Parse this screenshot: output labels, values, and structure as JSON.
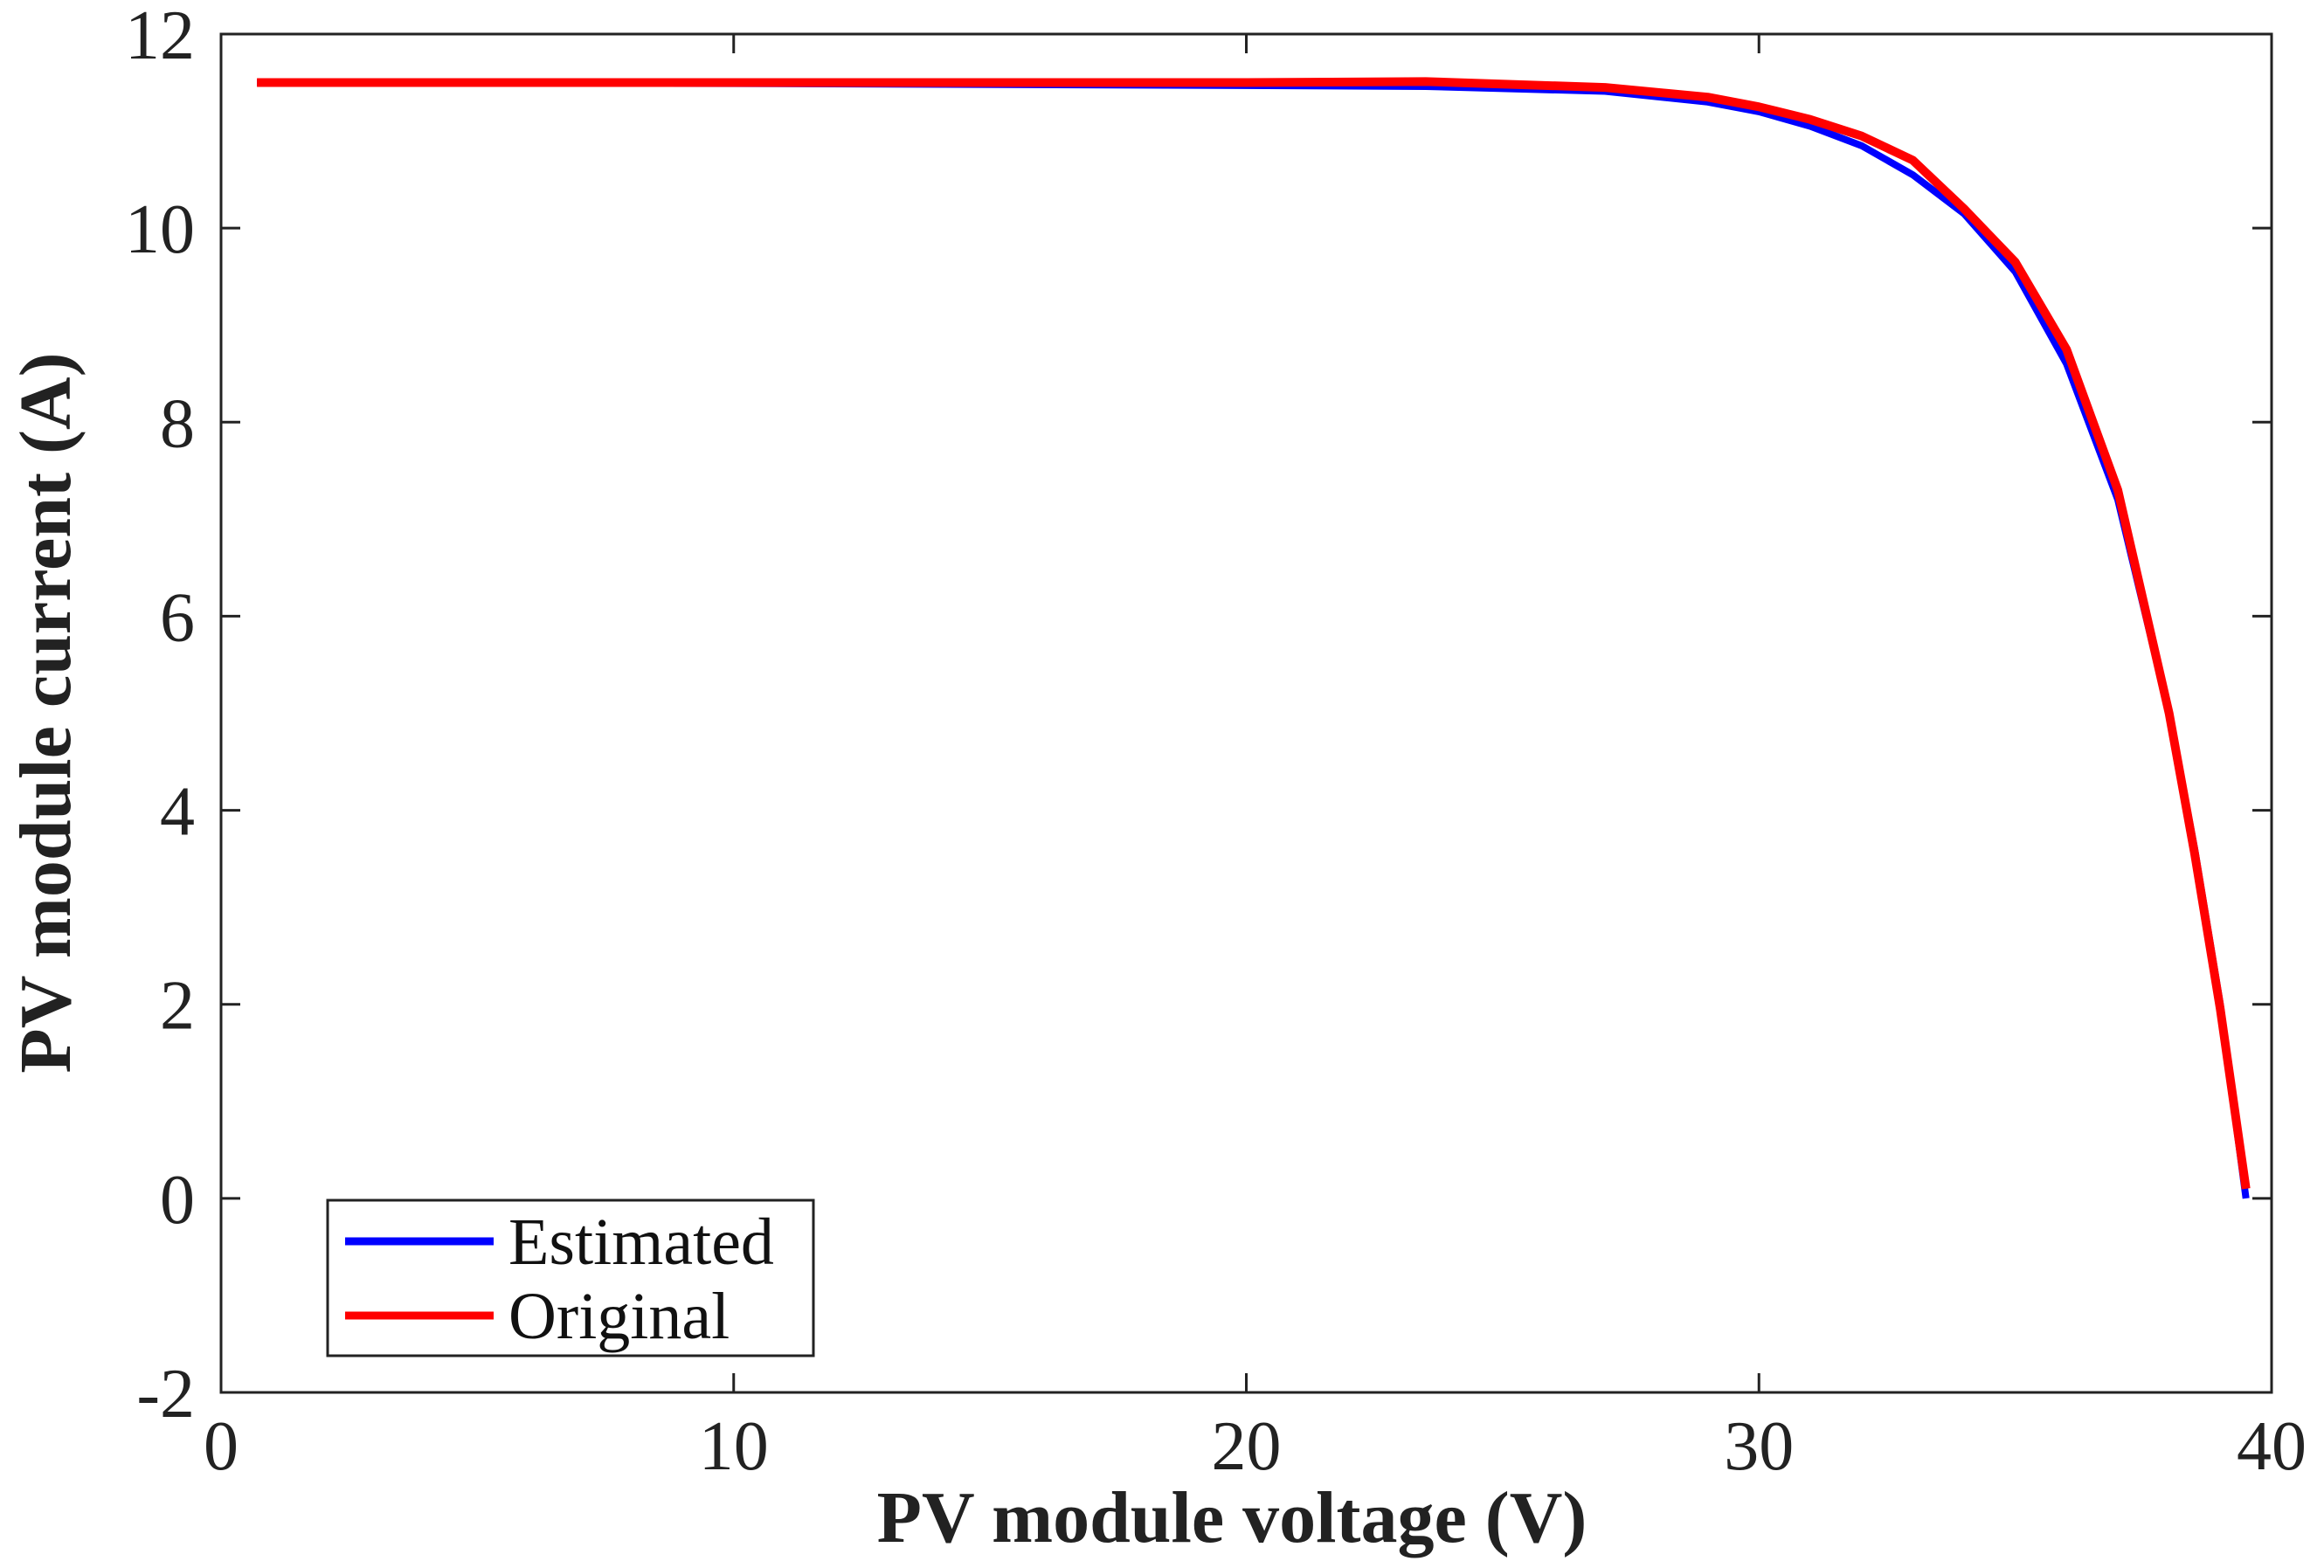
{
  "chart_data": {
    "type": "line",
    "title": "",
    "xlabel": "PV module voltage (V)",
    "ylabel": "PV module current (A)",
    "xlim": [
      0,
      40
    ],
    "ylim": [
      -2,
      12
    ],
    "xticks": [
      0,
      10,
      20,
      30,
      40
    ],
    "yticks": [
      -2,
      0,
      2,
      4,
      6,
      8,
      10,
      12
    ],
    "grid": false,
    "legend": {
      "placement": "bottom-left",
      "entries": [
        "Estimated",
        "Original"
      ]
    },
    "series": [
      {
        "name": "Estimated",
        "color": "#0000ff",
        "x": [
          0.7,
          10,
          20,
          23.5,
          27,
          29,
          30,
          31,
          32,
          33,
          34,
          35,
          36,
          37,
          38,
          38.5,
          39,
          39.5
        ],
        "y": [
          11.5,
          11.49,
          11.47,
          11.46,
          11.41,
          11.3,
          11.2,
          11.05,
          10.85,
          10.55,
          10.15,
          9.55,
          8.6,
          7.2,
          5.0,
          3.6,
          2.0,
          0.0
        ]
      },
      {
        "name": "Original",
        "color": "#ff0000",
        "x": [
          0.7,
          10,
          20,
          23.5,
          27,
          29,
          30,
          31,
          32,
          33,
          34,
          35,
          36,
          37,
          38,
          38.5,
          39,
          39.5
        ],
        "y": [
          11.5,
          11.5,
          11.5,
          11.51,
          11.45,
          11.35,
          11.25,
          11.12,
          10.95,
          10.7,
          10.2,
          9.65,
          8.75,
          7.3,
          5.0,
          3.55,
          1.95,
          0.1
        ]
      }
    ]
  }
}
